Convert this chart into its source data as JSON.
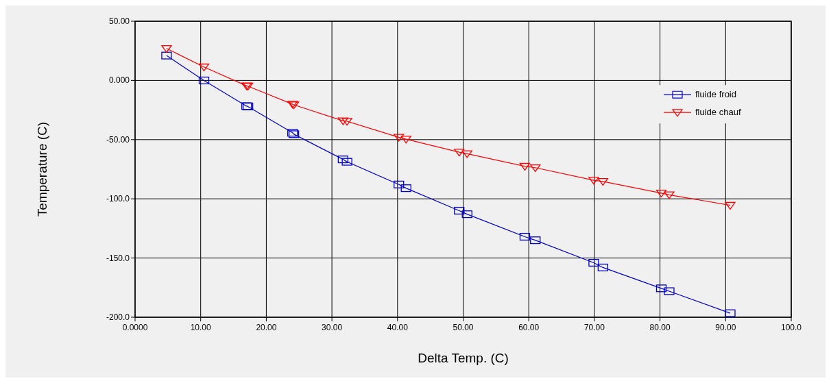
{
  "chart_data": {
    "type": "line",
    "xlabel": "Delta Temp. (C)",
    "ylabel": "Temperature (C)",
    "xlim": [
      0,
      100
    ],
    "ylim": [
      -200,
      50
    ],
    "xticks": [
      {
        "value": 0,
        "label": "0.0000"
      },
      {
        "value": 10,
        "label": "10.00"
      },
      {
        "value": 20,
        "label": "20.00"
      },
      {
        "value": 30,
        "label": "30.00"
      },
      {
        "value": 40,
        "label": "40.00"
      },
      {
        "value": 50,
        "label": "50.00"
      },
      {
        "value": 60,
        "label": "60.00"
      },
      {
        "value": 70,
        "label": "70.00"
      },
      {
        "value": 80,
        "label": "80.00"
      },
      {
        "value": 90,
        "label": "90.00"
      },
      {
        "value": 100,
        "label": "100.0"
      }
    ],
    "yticks": [
      {
        "value": -200,
        "label": "-200.0"
      },
      {
        "value": -150,
        "label": "-150.0"
      },
      {
        "value": -100,
        "label": "-100.0"
      },
      {
        "value": -50,
        "label": "-50.00"
      },
      {
        "value": 0,
        "label": "0.000"
      },
      {
        "value": 50,
        "label": "50.00"
      }
    ],
    "grid": true,
    "legend": "right",
    "series": [
      {
        "name": "fluide froid",
        "color": "#0000cc",
        "marker": "square",
        "x": [
          4.8,
          10.5,
          17.0,
          17.2,
          24.0,
          24.2,
          31.7,
          32.3,
          40.2,
          41.3,
          49.4,
          50.6,
          59.4,
          61.0,
          69.9,
          71.3,
          80.2,
          81.4,
          90.7
        ],
        "values": [
          21,
          0,
          -21.7,
          -22,
          -44.2,
          -45.4,
          -66.7,
          -68.7,
          -87.9,
          -91,
          -110,
          -113,
          -132,
          -135,
          -154,
          -158,
          -175.6,
          -178,
          -196.6
        ]
      },
      {
        "name": "fluide chauf",
        "color": "#ff0000",
        "marker": "triangle",
        "x": [
          4.8,
          10.5,
          17.0,
          17.2,
          24.0,
          24.2,
          31.7,
          32.3,
          40.2,
          41.3,
          49.4,
          50.6,
          59.4,
          61.0,
          69.9,
          71.3,
          80.2,
          81.4,
          90.7
        ],
        "values": [
          27,
          11.4,
          -4.6,
          -4.8,
          -20.1,
          -20.6,
          -34.1,
          -34.5,
          -48,
          -49.6,
          -60.6,
          -61.9,
          -72.5,
          -73.7,
          -84.3,
          -85.3,
          -95.2,
          -96.6,
          -105.5
        ]
      }
    ]
  }
}
